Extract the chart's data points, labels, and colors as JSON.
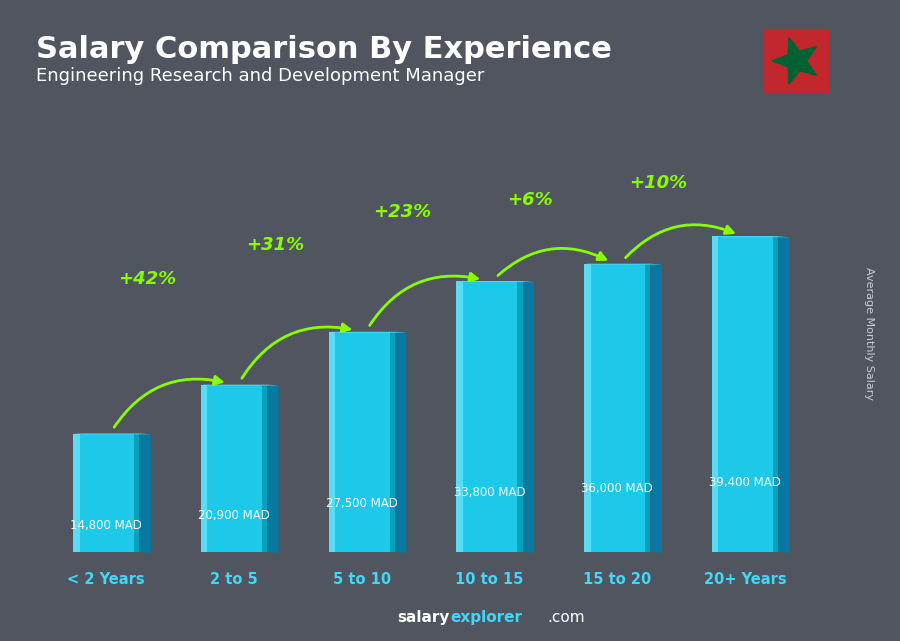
{
  "title": "Salary Comparison By Experience",
  "subtitle": "Engineering Research and Development Manager",
  "categories": [
    "< 2 Years",
    "2 to 5",
    "5 to 10",
    "10 to 15",
    "15 to 20",
    "20+ Years"
  ],
  "values": [
    14800,
    20900,
    27500,
    33800,
    36000,
    39400
  ],
  "salary_labels": [
    "14,800 MAD",
    "20,900 MAD",
    "27,500 MAD",
    "33,800 MAD",
    "36,000 MAD",
    "39,400 MAD"
  ],
  "pct_labels": [
    "+42%",
    "+31%",
    "+23%",
    "+6%",
    "+10%"
  ],
  "bar_face": "#1ec8e8",
  "bar_highlight": "#60e0f8",
  "bar_dark": "#0898b8",
  "bar_side": "#0878a0",
  "bar_top": "#50d8f5",
  "title_color": "#ffffff",
  "subtitle_color": "#ffffff",
  "salary_label_color": "#ffffff",
  "pct_color": "#88ff00",
  "xlabel_color": "#40d8f8",
  "ylabel_text": "Average Monthly Salary",
  "footer_salary": "salary",
  "footer_explorer": "explorer",
  "footer_com": ".com",
  "background_color": "#4a5060",
  "ylim": [
    0,
    46000
  ],
  "bar_width": 0.52
}
